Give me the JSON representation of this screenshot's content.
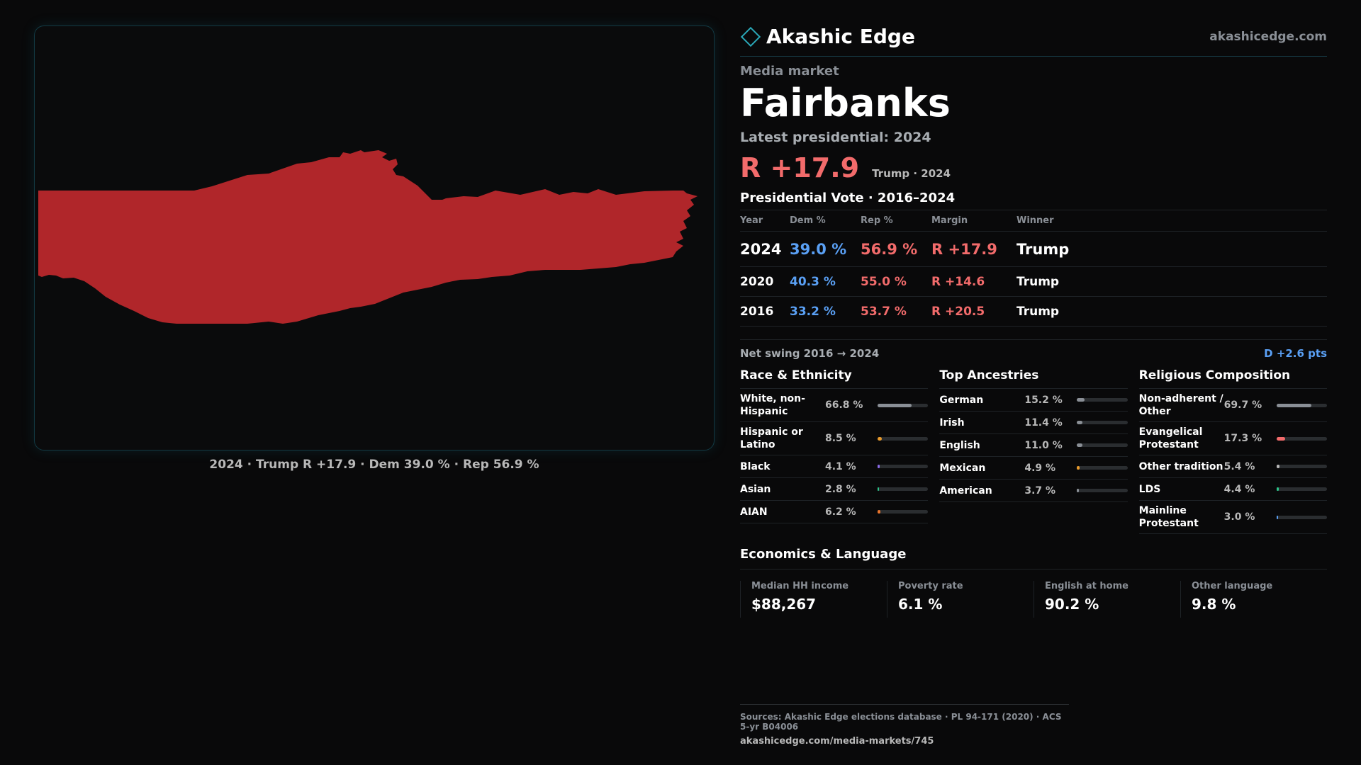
{
  "brand": {
    "name": "Akashic Edge",
    "url": "akashicedge.com",
    "logo_icon": "diamond-logo-icon",
    "accent": "#2aa8b8"
  },
  "market": {
    "eyebrow": "Media market",
    "name": "Fairbanks"
  },
  "latest": {
    "label": "Latest presidential: 2024",
    "margin": "R +17.9",
    "sub": "Trump · 2024"
  },
  "map": {
    "caption": "2024 · Trump R +17.9 · Dem 39.0 % · Rep 56.9 %",
    "fill_color": "#b0262a"
  },
  "vote": {
    "title": "Presidential Vote · 2016–2024",
    "headers": [
      "Year",
      "Dem %",
      "Rep %",
      "Margin",
      "Winner"
    ],
    "rows": [
      {
        "year": "2024",
        "dem": "39.0 %",
        "rep": "56.9 %",
        "margin": "R +17.9",
        "winner": "Trump"
      },
      {
        "year": "2020",
        "dem": "40.3 %",
        "rep": "55.0 %",
        "margin": "R +14.6",
        "winner": "Trump"
      },
      {
        "year": "2016",
        "dem": "33.2 %",
        "rep": "53.7 %",
        "margin": "R +20.5",
        "winner": "Trump"
      }
    ],
    "swing_label": "Net swing 2016 → 2024",
    "swing_value": "D +2.6 pts"
  },
  "race": {
    "title": "Race & Ethnicity",
    "rows": [
      {
        "label": "White, non-Hispanic",
        "value": "66.8 %",
        "share": 66.8,
        "color": "#8a8f96"
      },
      {
        "label": "Hispanic or Latino",
        "value": "8.5 %",
        "share": 8.5,
        "color": "#e89a2c"
      },
      {
        "label": "Black",
        "value": "4.1 %",
        "share": 4.1,
        "color": "#8a6ae8"
      },
      {
        "label": "Asian",
        "value": "2.8 %",
        "share": 2.8,
        "color": "#2cc48a"
      },
      {
        "label": "AIAN",
        "value": "6.2 %",
        "share": 6.2,
        "color": "#e8742c"
      }
    ]
  },
  "ancestry": {
    "title": "Top Ancestries",
    "rows": [
      {
        "label": "German",
        "value": "15.2 %",
        "share": 15.2,
        "color": "#8a8f96"
      },
      {
        "label": "Irish",
        "value": "11.4 %",
        "share": 11.4,
        "color": "#8a8f96"
      },
      {
        "label": "English",
        "value": "11.0 %",
        "share": 11.0,
        "color": "#8a8f96"
      },
      {
        "label": "Mexican",
        "value": "4.9 %",
        "share": 4.9,
        "color": "#e89a2c"
      },
      {
        "label": "American",
        "value": "3.7 %",
        "share": 3.7,
        "color": "#8a8f96"
      }
    ]
  },
  "religion": {
    "title": "Religious Composition",
    "rows": [
      {
        "label": "Non-adherent / Other",
        "value": "69.7 %",
        "share": 69.7,
        "color": "#8a8f96"
      },
      {
        "label": "Evangelical Protestant",
        "value": "17.3 %",
        "share": 17.3,
        "color": "#f26b6b"
      },
      {
        "label": "Other tradition",
        "value": "5.4 %",
        "share": 5.4,
        "color": "#b8b8b8"
      },
      {
        "label": "LDS",
        "value": "4.4 %",
        "share": 4.4,
        "color": "#2cc48a"
      },
      {
        "label": "Mainline Protestant",
        "value": "3.0 %",
        "share": 3.0,
        "color": "#5aa0f5"
      }
    ]
  },
  "econ": {
    "title": "Economics & Language",
    "cells": [
      {
        "label": "Median HH income",
        "value": "$88,267"
      },
      {
        "label": "Poverty rate",
        "value": "6.1 %"
      },
      {
        "label": "English at home",
        "value": "90.2 %"
      },
      {
        "label": "Other language",
        "value": "9.8 %"
      }
    ]
  },
  "footer": {
    "sources": "Sources: Akashic Edge elections database · PL 94-171 (2020) · ACS 5-yr B04006",
    "url": "akashicedge.com/media-markets/745"
  }
}
